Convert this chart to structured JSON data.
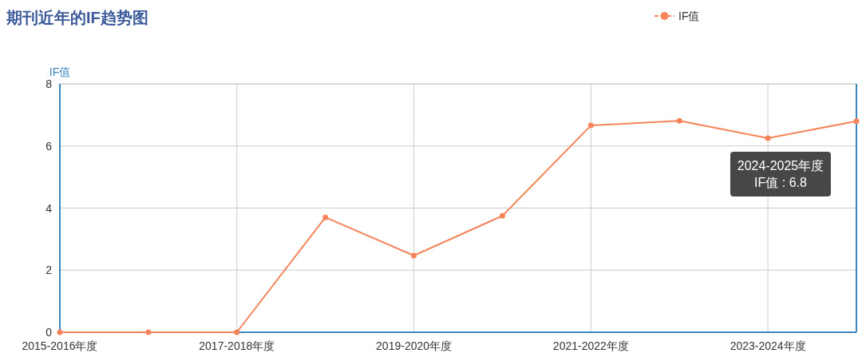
{
  "chart_data": {
    "type": "line",
    "title": "期刊近年的IF趋势图",
    "ylabel": "IF值",
    "categories": [
      "2015-2016年度",
      null,
      "2017-2018年度",
      null,
      "2019-2020年度",
      null,
      "2021-2022年度",
      null,
      "2023-2024年度",
      null
    ],
    "series": [
      {
        "name": "IF值",
        "color": "#f5845a",
        "values": [
          0,
          0,
          0,
          3.7,
          2.47,
          3.75,
          6.66,
          6.81,
          6.25,
          6.8
        ]
      }
    ],
    "ylim": [
      0,
      8
    ],
    "yticks": [
      0,
      2,
      4,
      6,
      8
    ],
    "grid": true,
    "legend": "top right",
    "marker": "circle",
    "line_style": "solid",
    "annotations": [
      "2024-2025年度\nIF值 : 6.8"
    ]
  }
}
